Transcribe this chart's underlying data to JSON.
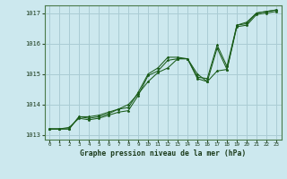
{
  "title": "Graphe pression niveau de la mer (hPa)",
  "background_color": "#cce8ee",
  "grid_color": "#aaccd4",
  "line_color": "#1a5c1a",
  "marker_color": "#1a5c1a",
  "xlim": [
    -0.5,
    23.5
  ],
  "ylim": [
    1012.85,
    1017.25
  ],
  "yticks": [
    1013,
    1014,
    1015,
    1016,
    1017
  ],
  "xticks": [
    0,
    1,
    2,
    3,
    4,
    5,
    6,
    7,
    8,
    9,
    10,
    11,
    12,
    13,
    14,
    15,
    16,
    17,
    18,
    19,
    20,
    21,
    22,
    23
  ],
  "series1_x": [
    0,
    1,
    2,
    3,
    4,
    5,
    6,
    7,
    8,
    9,
    10,
    11,
    12,
    13,
    14,
    15,
    16,
    17,
    18,
    19,
    20,
    21,
    22,
    23
  ],
  "series1_y": [
    1013.2,
    1013.2,
    1013.25,
    1013.55,
    1013.5,
    1013.55,
    1013.65,
    1013.75,
    1013.8,
    1014.3,
    1014.95,
    1015.1,
    1015.45,
    1015.5,
    1015.5,
    1014.85,
    1014.75,
    1015.85,
    1015.15,
    1016.55,
    1016.6,
    1016.95,
    1017.0,
    1017.05
  ],
  "series2_x": [
    0,
    1,
    2,
    3,
    4,
    5,
    6,
    7,
    8,
    9,
    10,
    11,
    12,
    13,
    14,
    15,
    16,
    17,
    18,
    19,
    20,
    21,
    22,
    23
  ],
  "series2_y": [
    1013.2,
    1013.2,
    1013.2,
    1013.6,
    1013.55,
    1013.6,
    1013.7,
    1013.85,
    1013.9,
    1014.4,
    1015.0,
    1015.2,
    1015.55,
    1015.55,
    1015.5,
    1014.9,
    1014.85,
    1015.95,
    1015.25,
    1016.6,
    1016.65,
    1017.0,
    1017.05,
    1017.1
  ],
  "series3_x": [
    0,
    1,
    2,
    3,
    4,
    5,
    6,
    7,
    8,
    9,
    10,
    11,
    12,
    13,
    14,
    15,
    16,
    17,
    18,
    19,
    20,
    21,
    22,
    23
  ],
  "series3_y": [
    1013.2,
    1013.2,
    1013.2,
    1013.6,
    1013.6,
    1013.65,
    1013.75,
    1013.85,
    1014.0,
    1014.35,
    1014.75,
    1015.05,
    1015.2,
    1015.5,
    1015.5,
    1015.0,
    1014.75,
    1015.1,
    1015.15,
    1016.6,
    1016.7,
    1017.0,
    1017.05,
    1017.1
  ]
}
